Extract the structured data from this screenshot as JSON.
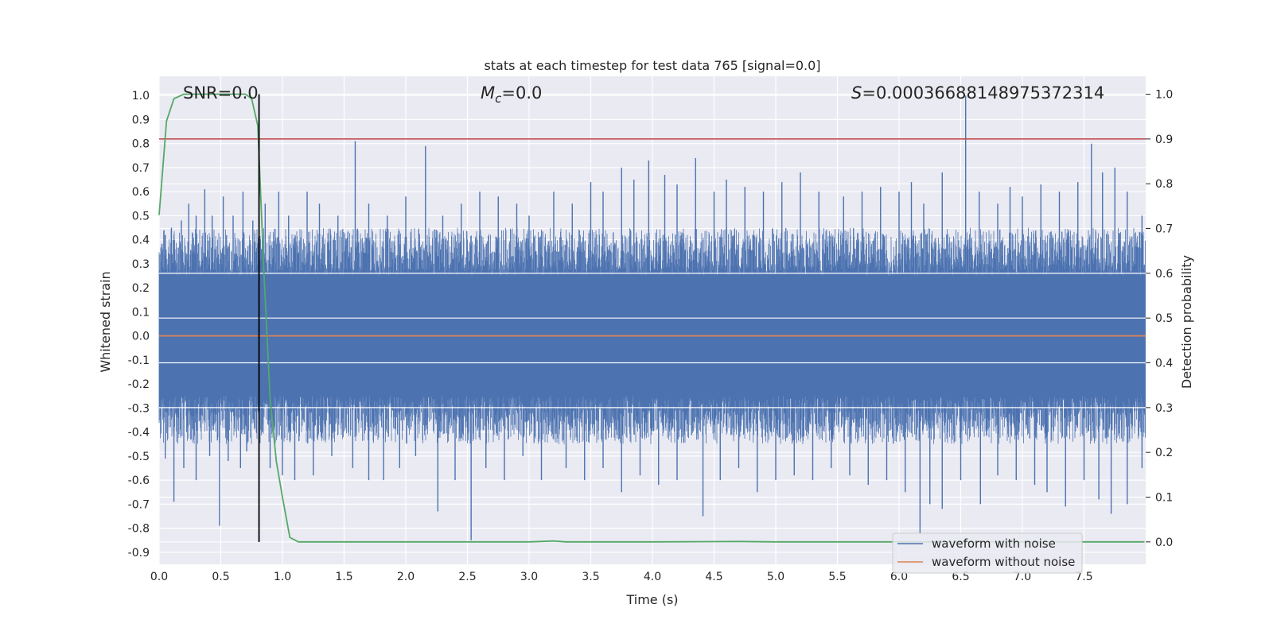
{
  "chart_data": {
    "type": "line",
    "title": "stats at each timestep for test data 765 [signal=0.0]",
    "xlabel": "Time (s)",
    "ylabel": "Whitened strain",
    "y2label": "Detection probability",
    "xlim": [
      0.0,
      8.0
    ],
    "ylim": [
      -0.95,
      1.08
    ],
    "y2lim": [
      -0.05,
      1.04
    ],
    "grid": true,
    "x_ticks": [
      "0.0",
      "0.5",
      "1.0",
      "1.5",
      "2.0",
      "2.5",
      "3.0",
      "3.5",
      "4.0",
      "4.5",
      "5.0",
      "5.5",
      "6.0",
      "6.5",
      "7.0",
      "7.5"
    ],
    "y_ticks": [
      "1.0",
      "0.9",
      "0.8",
      "0.7",
      "0.6",
      "0.5",
      "0.4",
      "0.3",
      "0.2",
      "0.1",
      "0.0",
      "-0.1",
      "-0.2",
      "-0.3",
      "-0.4",
      "-0.5",
      "-0.6",
      "-0.7",
      "-0.8",
      "-0.9"
    ],
    "y2_ticks": [
      "1.0",
      "0.9",
      "0.8",
      "0.7",
      "0.6",
      "0.5",
      "0.4",
      "0.3",
      "0.2",
      "0.1",
      "0.0"
    ],
    "annotations": {
      "snr": "SNR=0.0",
      "mc_symbol": "M",
      "mc_sub": "c",
      "mc_value": "=0.0",
      "s_symbol": "S",
      "s_value": "=0.00036688148975372314"
    },
    "threshold_y2": 0.9,
    "vertical_marker_x": 0.81,
    "series": [
      {
        "name": "waveform with noise",
        "color": "#4c72b0",
        "band": {
          "upper_min": 0.25,
          "upper_max": 0.45,
          "lower_min": -0.45,
          "lower_max": -0.25
        },
        "spikes": [
          [
            0.05,
            0.42
          ],
          [
            0.1,
            0.45
          ],
          [
            0.18,
            0.48
          ],
          [
            0.24,
            0.55
          ],
          [
            0.3,
            0.5
          ],
          [
            0.37,
            0.61
          ],
          [
            0.43,
            0.5
          ],
          [
            0.52,
            0.58
          ],
          [
            0.6,
            0.5
          ],
          [
            0.68,
            0.6
          ],
          [
            0.76,
            0.48
          ],
          [
            0.86,
            0.55
          ],
          [
            0.97,
            0.6
          ],
          [
            1.05,
            0.5
          ],
          [
            1.2,
            0.6
          ],
          [
            1.3,
            0.55
          ],
          [
            1.45,
            0.5
          ],
          [
            1.59,
            0.81
          ],
          [
            1.7,
            0.55
          ],
          [
            1.85,
            0.5
          ],
          [
            2.0,
            0.58
          ],
          [
            2.16,
            0.79
          ],
          [
            2.3,
            0.5
          ],
          [
            2.45,
            0.55
          ],
          [
            2.6,
            0.6
          ],
          [
            2.75,
            0.58
          ],
          [
            2.9,
            0.55
          ],
          [
            3.0,
            0.5
          ],
          [
            3.2,
            0.6
          ],
          [
            3.35,
            0.55
          ],
          [
            3.5,
            0.64
          ],
          [
            3.6,
            0.6
          ],
          [
            3.75,
            0.7
          ],
          [
            3.85,
            0.65
          ],
          [
            3.97,
            0.73
          ],
          [
            4.1,
            0.67
          ],
          [
            4.2,
            0.63
          ],
          [
            4.35,
            0.74
          ],
          [
            4.5,
            0.6
          ],
          [
            4.6,
            0.65
          ],
          [
            4.75,
            0.62
          ],
          [
            4.9,
            0.6
          ],
          [
            5.05,
            0.64
          ],
          [
            5.2,
            0.68
          ],
          [
            5.35,
            0.6
          ],
          [
            5.55,
            0.58
          ],
          [
            5.7,
            0.6
          ],
          [
            5.85,
            0.62
          ],
          [
            6.0,
            0.6
          ],
          [
            6.1,
            0.64
          ],
          [
            6.2,
            0.55
          ],
          [
            6.35,
            0.68
          ],
          [
            6.54,
            1.0
          ],
          [
            6.65,
            0.6
          ],
          [
            6.8,
            0.55
          ],
          [
            6.9,
            0.62
          ],
          [
            7.0,
            0.58
          ],
          [
            7.15,
            0.63
          ],
          [
            7.3,
            0.6
          ],
          [
            7.45,
            0.64
          ],
          [
            7.56,
            0.8
          ],
          [
            7.65,
            0.68
          ],
          [
            7.75,
            0.7
          ],
          [
            7.85,
            0.6
          ],
          [
            7.97,
            0.5
          ],
          [
            0.05,
            -0.51
          ],
          [
            0.12,
            -0.69
          ],
          [
            0.2,
            -0.55
          ],
          [
            0.3,
            -0.6
          ],
          [
            0.41,
            -0.5
          ],
          [
            0.49,
            -0.79
          ],
          [
            0.56,
            -0.52
          ],
          [
            0.66,
            -0.55
          ],
          [
            0.71,
            -0.48
          ],
          [
            0.9,
            -0.55
          ],
          [
            1.0,
            -0.58
          ],
          [
            1.1,
            -0.6
          ],
          [
            1.25,
            -0.58
          ],
          [
            1.4,
            -0.5
          ],
          [
            1.57,
            -0.55
          ],
          [
            1.7,
            -0.6
          ],
          [
            1.82,
            -0.6
          ],
          [
            1.95,
            -0.55
          ],
          [
            2.08,
            -0.5
          ],
          [
            2.26,
            -0.73
          ],
          [
            2.4,
            -0.6
          ],
          [
            2.53,
            -0.85
          ],
          [
            2.65,
            -0.55
          ],
          [
            2.8,
            -0.6
          ],
          [
            2.95,
            -0.5
          ],
          [
            3.1,
            -0.6
          ],
          [
            3.3,
            -0.55
          ],
          [
            3.45,
            -0.6
          ],
          [
            3.6,
            -0.55
          ],
          [
            3.75,
            -0.65
          ],
          [
            3.9,
            -0.58
          ],
          [
            4.05,
            -0.62
          ],
          [
            4.2,
            -0.6
          ],
          [
            4.41,
            -0.75
          ],
          [
            4.55,
            -0.6
          ],
          [
            4.7,
            -0.55
          ],
          [
            4.85,
            -0.65
          ],
          [
            5.0,
            -0.6
          ],
          [
            5.15,
            -0.58
          ],
          [
            5.3,
            -0.6
          ],
          [
            5.45,
            -0.55
          ],
          [
            5.6,
            -0.58
          ],
          [
            5.75,
            -0.62
          ],
          [
            5.9,
            -0.6
          ],
          [
            6.05,
            -0.65
          ],
          [
            6.17,
            -0.82
          ],
          [
            6.25,
            -0.7
          ],
          [
            6.35,
            -0.72
          ],
          [
            6.5,
            -0.6
          ],
          [
            6.66,
            -0.7
          ],
          [
            6.8,
            -0.58
          ],
          [
            6.95,
            -0.6
          ],
          [
            7.1,
            -0.62
          ],
          [
            7.2,
            -0.65
          ],
          [
            7.35,
            -0.71
          ],
          [
            7.5,
            -0.6
          ],
          [
            7.62,
            -0.68
          ],
          [
            7.72,
            -0.74
          ],
          [
            7.85,
            -0.7
          ],
          [
            7.97,
            -0.55
          ]
        ]
      },
      {
        "name": "waveform without noise",
        "color": "#dd8452",
        "x": [
          0.0,
          8.0
        ],
        "y": [
          0.0,
          0.0
        ]
      },
      {
        "name": "",
        "axis": "right",
        "color": "#55a868",
        "x": [
          0.0,
          0.06,
          0.12,
          0.2,
          0.3,
          0.4,
          0.5,
          0.6,
          0.7,
          0.75,
          0.8,
          0.85,
          0.9,
          0.95,
          1.0,
          1.06,
          1.13,
          1.3,
          2.0,
          3.0,
          3.2,
          3.3,
          4.0,
          4.7,
          5.0,
          6.0,
          7.0,
          7.99
        ],
        "y": [
          0.73,
          0.94,
          0.99,
          1.0,
          1.0,
          1.0,
          1.0,
          1.0,
          1.0,
          0.99,
          0.93,
          0.6,
          0.32,
          0.18,
          0.1,
          0.01,
          0.0,
          0.0,
          0.0,
          0.0,
          0.002,
          0.0,
          0.0,
          0.001,
          0.0,
          0.0,
          0.0,
          0.0
        ]
      }
    ],
    "legend": {
      "placement": "lower-right",
      "entries": [
        "waveform with noise",
        "waveform without noise"
      ]
    }
  }
}
